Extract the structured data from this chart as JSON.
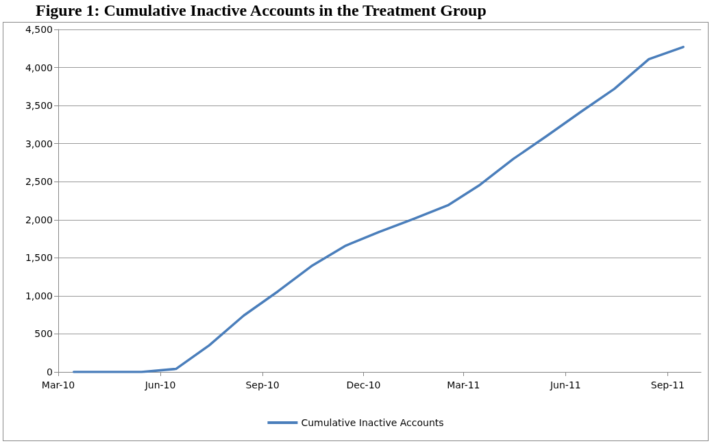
{
  "chart_data": {
    "type": "line",
    "title": "Figure 1: Cumulative Inactive Accounts in the Treatment Group",
    "x": [
      "2010-03-15",
      "2010-04-15",
      "2010-05-15",
      "2010-06-15",
      "2010-07-15",
      "2010-08-15",
      "2010-09-15",
      "2010-10-15",
      "2010-11-15",
      "2010-12-15",
      "2011-01-15",
      "2011-02-15",
      "2011-03-15",
      "2011-04-15",
      "2011-05-15",
      "2011-06-15",
      "2011-07-15",
      "2011-08-15",
      "2011-09-15"
    ],
    "series": [
      {
        "name": "Cumulative Inactive Accounts",
        "color": "#4a7ebb",
        "values": [
          0,
          0,
          0,
          40,
          350,
          740,
          1060,
          1390,
          1660,
          1840,
          2010,
          2190,
          2450,
          2800,
          3100,
          3420,
          3720,
          4110,
          4270
        ]
      }
    ],
    "xlim": [
      "2010-03-01",
      "2011-10-01"
    ],
    "xticks": [
      {
        "value": "2010-03-01",
        "label": "Mar-10"
      },
      {
        "value": "2010-06-01",
        "label": "Jun-10"
      },
      {
        "value": "2010-09-01",
        "label": "Sep-10"
      },
      {
        "value": "2010-12-01",
        "label": "Dec-10"
      },
      {
        "value": "2011-03-01",
        "label": "Mar-11"
      },
      {
        "value": "2011-06-01",
        "label": "Jun-11"
      },
      {
        "value": "2011-09-01",
        "label": "Sep-11"
      }
    ],
    "ylim": [
      0,
      4500
    ],
    "yticks": [
      {
        "value": 0,
        "label": "0"
      },
      {
        "value": 500,
        "label": "500"
      },
      {
        "value": 1000,
        "label": "1,000"
      },
      {
        "value": 1500,
        "label": "1,500"
      },
      {
        "value": 2000,
        "label": "2,000"
      },
      {
        "value": 2500,
        "label": "2,500"
      },
      {
        "value": 3000,
        "label": "3,000"
      },
      {
        "value": 3500,
        "label": "3,500"
      },
      {
        "value": 4000,
        "label": "4,000"
      },
      {
        "value": 4500,
        "label": "4,500"
      }
    ],
    "grid": "y",
    "legend": "bottom",
    "marker": "none",
    "line_style": "solid"
  }
}
